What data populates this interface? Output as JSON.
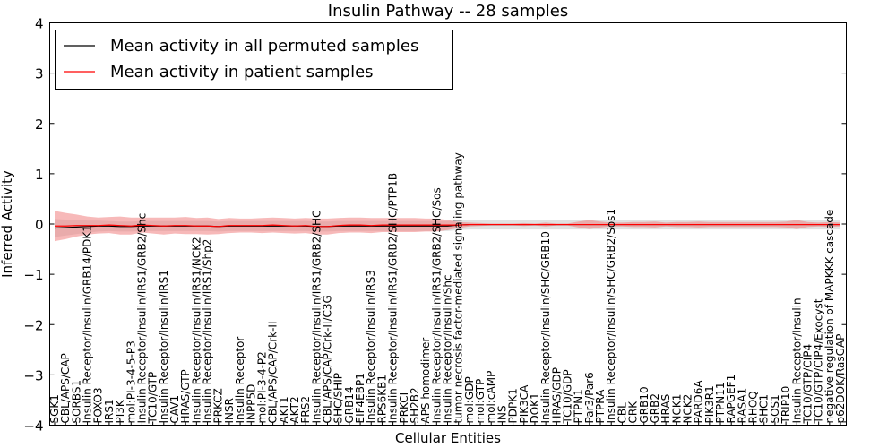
{
  "chart_data": {
    "type": "line",
    "title": "Insulin Pathway -- 28 samples",
    "xlabel": "Cellular Entities",
    "ylabel": "Inferred Activity",
    "ylim": [
      -4,
      4
    ],
    "yticks": [
      "4",
      "3",
      "2",
      "1",
      "0",
      "−1",
      "−2",
      "−3",
      "−4"
    ],
    "grid": false,
    "legend_position": "top-left",
    "legend": [
      {
        "label": "Mean activity in all permuted samples",
        "color": "#000000"
      },
      {
        "label": "Mean activity in patient samples",
        "color": "#ff0000"
      }
    ],
    "categories": [
      "SGK1",
      "CBL/APS/CAP",
      "SORBS1",
      "Insulin Receptor/Insulin/GRB14/PDK1",
      "FOXO3",
      "IRS1",
      "PI3K",
      "mol:PI-3-4-5-P3",
      "Insulin Receptor/Insulin/IRS1/GRB2/Shc",
      "TC10/GTP",
      "Insulin Receptor/Insulin/IRS1",
      "CAV1",
      "HRAS/GTP",
      "Insulin Receptor/Insulin/IRS1/NCK2",
      "Insulin Receptor/Insulin/IRS1/Shp2",
      "PRKCZ",
      "INSR",
      "Insulin Receptor",
      "INPP5D",
      "mol:PI-3-4-P2",
      "CBL/APS/CAP/Crk-II",
      "AKT1",
      "AKT2",
      "FRS2",
      "Insulin Receptor/Insulin/IRS1/GRB2/SHC",
      "CBL/APS/CAP/Crk-II/C3G",
      "SHC/SHIP",
      "GRB14",
      "EIF4EBP1",
      "Insulin Receptor/Insulin/IRS3",
      "RPS6KB1",
      "Insulin Receptor/Insulin/IRS1/GRB2/SHC/PTP1B",
      "PRKCI",
      "SH2B2",
      "APS homodimer",
      "Insulin Receptor/Insulin/IRS1/GRB2/SHC/Sos",
      "Insulin Receptor/Insulin/Shc",
      "tumor necrosis factor-mediated signaling pathway",
      "mol:GDP",
      "mol:GTP",
      "mol:cAMP",
      "INS",
      "PDPK1",
      "PIK3CA",
      "DOK1",
      "Insulin Receptor/Insulin/SHC/GRB10",
      "HRAS/GDP",
      "TC10/GDP",
      "PTPN1",
      "Par3/Par6",
      "PTPRA",
      "Insulin Receptor/Insulin/SHC/GRB2/Sos1",
      "CBL",
      "CRK",
      "GRB10",
      "GRB2",
      "HRAS",
      "NCK1",
      "NCK2",
      "PARD6A",
      "PIK3R1",
      "PTPN11",
      "RAPGEF1",
      "RASA1",
      "RHOQ",
      "SHC1",
      "SOS1",
      "TRIP10",
      "Insulin Receptor/Insulin",
      "TC10/GTP/CIP4",
      "TC10/GTP/CIP4/Exocyst",
      "negative regulation of MAPKKK cascade",
      "p62DOK/RasGAP"
    ],
    "series": [
      {
        "name": "Mean activity in all permuted samples",
        "color": "#000000",
        "values": [
          -0.08,
          -0.07,
          -0.06,
          -0.05,
          -0.04,
          -0.04,
          -0.05,
          -0.05,
          -0.04,
          -0.04,
          -0.04,
          -0.04,
          -0.04,
          -0.04,
          -0.04,
          -0.05,
          -0.04,
          -0.04,
          -0.04,
          -0.04,
          -0.04,
          -0.04,
          -0.04,
          -0.04,
          -0.05,
          -0.05,
          -0.04,
          -0.04,
          -0.04,
          -0.04,
          -0.04,
          -0.04,
          -0.04,
          -0.04,
          -0.04,
          -0.04,
          -0.04,
          -0.02,
          -0.01,
          -0.01,
          -0.01,
          -0.01,
          -0.01,
          -0.01,
          -0.01,
          -0.01,
          -0.01,
          -0.01,
          -0.01,
          -0.01,
          -0.01,
          -0.01,
          -0.01,
          -0.01,
          -0.01,
          -0.01,
          -0.01,
          -0.01,
          -0.01,
          -0.01,
          -0.01,
          -0.01,
          -0.01,
          -0.01,
          -0.01,
          -0.01,
          -0.01,
          -0.01,
          -0.01,
          -0.01,
          -0.01,
          -0.01,
          -0.01
        ],
        "band_halfwidth": [
          0.18,
          0.16,
          0.14,
          0.12,
          0.11,
          0.1,
          0.1,
          0.1,
          0.1,
          0.1,
          0.1,
          0.1,
          0.1,
          0.1,
          0.1,
          0.1,
          0.1,
          0.1,
          0.1,
          0.1,
          0.1,
          0.1,
          0.1,
          0.1,
          0.1,
          0.1,
          0.1,
          0.1,
          0.1,
          0.1,
          0.1,
          0.1,
          0.1,
          0.1,
          0.1,
          0.1,
          0.1,
          0.1,
          0.1,
          0.1,
          0.1,
          0.1,
          0.1,
          0.1,
          0.1,
          0.1,
          0.1,
          0.1,
          0.1,
          0.1,
          0.1,
          0.1,
          0.1,
          0.1,
          0.1,
          0.1,
          0.1,
          0.1,
          0.1,
          0.1,
          0.1,
          0.1,
          0.1,
          0.1,
          0.1,
          0.1,
          0.1,
          0.1,
          0.1,
          0.1,
          0.1,
          0.1,
          0.1
        ]
      },
      {
        "name": "Mean activity in patient samples",
        "color": "#ff0000",
        "values": [
          -0.04,
          -0.04,
          -0.03,
          -0.03,
          -0.03,
          -0.02,
          -0.03,
          -0.04,
          -0.02,
          -0.03,
          -0.04,
          -0.03,
          -0.03,
          -0.04,
          -0.04,
          -0.05,
          -0.03,
          -0.03,
          -0.03,
          -0.03,
          -0.02,
          -0.03,
          -0.04,
          -0.03,
          -0.05,
          -0.05,
          -0.03,
          -0.02,
          -0.02,
          -0.03,
          -0.02,
          -0.02,
          -0.02,
          -0.02,
          -0.02,
          -0.02,
          -0.02,
          -0.02,
          -0.01,
          -0.01,
          -0.01,
          -0.01,
          -0.01,
          -0.01,
          -0.01,
          -0.01,
          -0.01,
          -0.01,
          -0.01,
          -0.01,
          -0.01,
          -0.01,
          -0.01,
          -0.01,
          -0.01,
          -0.01,
          -0.01,
          -0.01,
          -0.01,
          -0.01,
          -0.01,
          -0.01,
          -0.01,
          -0.01,
          -0.01,
          -0.01,
          -0.01,
          -0.01,
          -0.01,
          -0.01,
          -0.01,
          -0.01,
          -0.01
        ],
        "band_halfwidth": [
          0.3,
          0.26,
          0.22,
          0.18,
          0.16,
          0.16,
          0.18,
          0.17,
          0.15,
          0.16,
          0.17,
          0.16,
          0.17,
          0.16,
          0.17,
          0.15,
          0.15,
          0.14,
          0.14,
          0.15,
          0.15,
          0.15,
          0.15,
          0.15,
          0.16,
          0.16,
          0.15,
          0.15,
          0.15,
          0.15,
          0.14,
          0.14,
          0.14,
          0.14,
          0.13,
          0.13,
          0.1,
          0.06,
          0.04,
          0.03,
          0.02,
          0.02,
          0.02,
          0.03,
          0.02,
          0.04,
          0.02,
          0.02,
          0.06,
          0.09,
          0.06,
          0.04,
          0.04,
          0.05,
          0.05,
          0.06,
          0.04,
          0.05,
          0.05,
          0.06,
          0.05,
          0.05,
          0.05,
          0.05,
          0.05,
          0.05,
          0.05,
          0.06,
          0.09,
          0.05,
          0.04,
          0.05,
          0.04
        ]
      }
    ]
  }
}
